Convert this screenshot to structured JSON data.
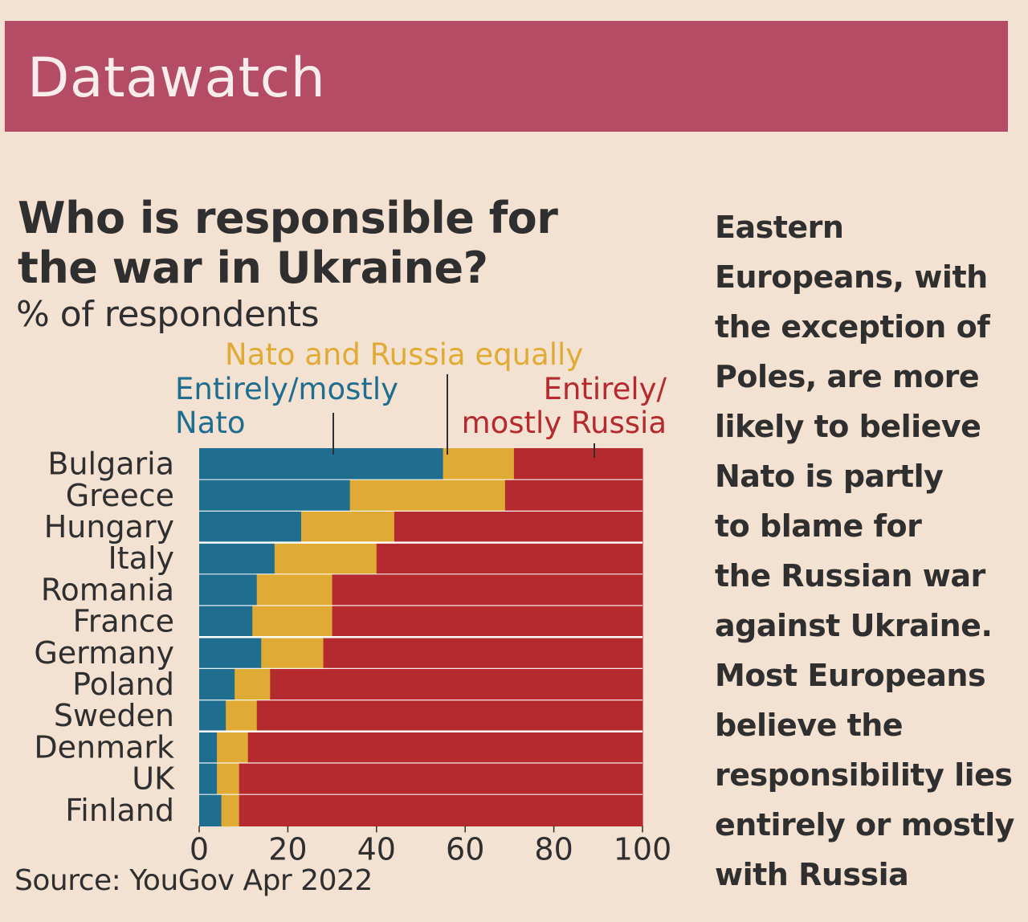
{
  "banner": {
    "title": "Datawatch"
  },
  "chart_data": {
    "type": "bar",
    "orientation": "horizontal",
    "stacked": true,
    "title_lines": [
      "Who is responsible for",
      "the war in Ukraine?"
    ],
    "subtitle": "% of respondents",
    "categories": [
      "Bulgaria",
      "Greece",
      "Hungary",
      "Italy",
      "Romania",
      "France",
      "Germany",
      "Poland",
      "Sweden",
      "Denmark",
      "UK",
      "Finland"
    ],
    "series": [
      {
        "name": "Entirely/mostly Nato",
        "label_lines": [
          "Entirely/mostly",
          "Nato"
        ],
        "color": "#1f6d8f",
        "values": [
          55,
          34,
          23,
          17,
          13,
          12,
          14,
          8,
          6,
          4,
          4,
          5
        ]
      },
      {
        "name": "Nato and Russia equally",
        "label_lines": [
          "Nato and Russia equally"
        ],
        "color": "#e0ab35",
        "values": [
          16,
          35,
          21,
          23,
          17,
          18,
          14,
          8,
          7,
          7,
          5,
          4
        ]
      },
      {
        "name": "Entirely/mostly Russia",
        "label_lines": [
          "Entirely/",
          "mostly Russia"
        ],
        "color": "#b52a2e",
        "values": [
          29,
          31,
          56,
          60,
          70,
          70,
          72,
          84,
          87,
          89,
          91,
          91
        ]
      }
    ],
    "xlim": [
      0,
      100
    ],
    "xticks": [
      "0",
      "20",
      "40",
      "60",
      "80",
      "100"
    ],
    "grid": false,
    "source": "Source: YouGov Apr 2022"
  },
  "commentary": {
    "lines": [
      "Eastern",
      "Europeans, with",
      "the exception of",
      "Poles, are more",
      "likely to believe",
      "Nato is partly",
      "to blame for",
      "the Russian war",
      "against Ukraine.",
      "Most Europeans",
      "believe the",
      "responsibility lies",
      "entirely or mostly",
      "with Russia"
    ]
  },
  "colors": {
    "background": "#f3e1d1",
    "banner": "#b44c66",
    "text": "#2f2f2f",
    "separator": "#ffffff"
  }
}
